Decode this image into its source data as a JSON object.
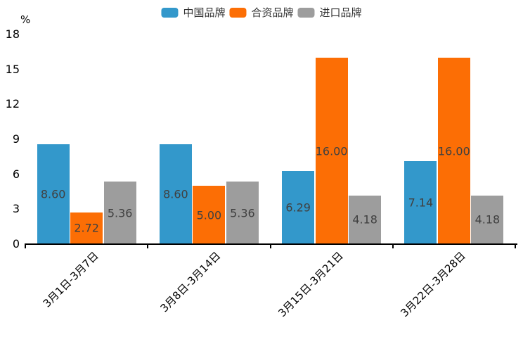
{
  "chart_data": {
    "type": "bar",
    "title": "",
    "ylabel": "%",
    "xlabel": "",
    "ylim": [
      0,
      18
    ],
    "yticks": [
      0,
      3,
      6,
      9,
      12,
      15,
      18
    ],
    "grid": false,
    "legend_position": "top",
    "categories": [
      "3月1日-3月7日",
      "3月8日-3月14日",
      "3月15日-3月21日",
      "3月22日-3月28日"
    ],
    "series": [
      {
        "name": "中国品牌",
        "color": "#3398CB",
        "values": [
          8.6,
          8.6,
          6.29,
          7.14
        ]
      },
      {
        "name": "合资品牌",
        "color": "#FC6E05",
        "values": [
          2.72,
          5.0,
          16.0,
          16.0
        ]
      },
      {
        "name": "进口品牌",
        "color": "#9D9D9D",
        "values": [
          5.36,
          5.36,
          4.18,
          4.18
        ]
      }
    ],
    "value_labels": [
      [
        "8.60",
        "8.60",
        "6.29",
        "7.14"
      ],
      [
        "2.72",
        "5.00",
        "16.00",
        "16.00"
      ],
      [
        "5.36",
        "5.36",
        "4.18",
        "4.18"
      ]
    ],
    "value_label_color": "#404040",
    "axis_color": "#000000"
  }
}
